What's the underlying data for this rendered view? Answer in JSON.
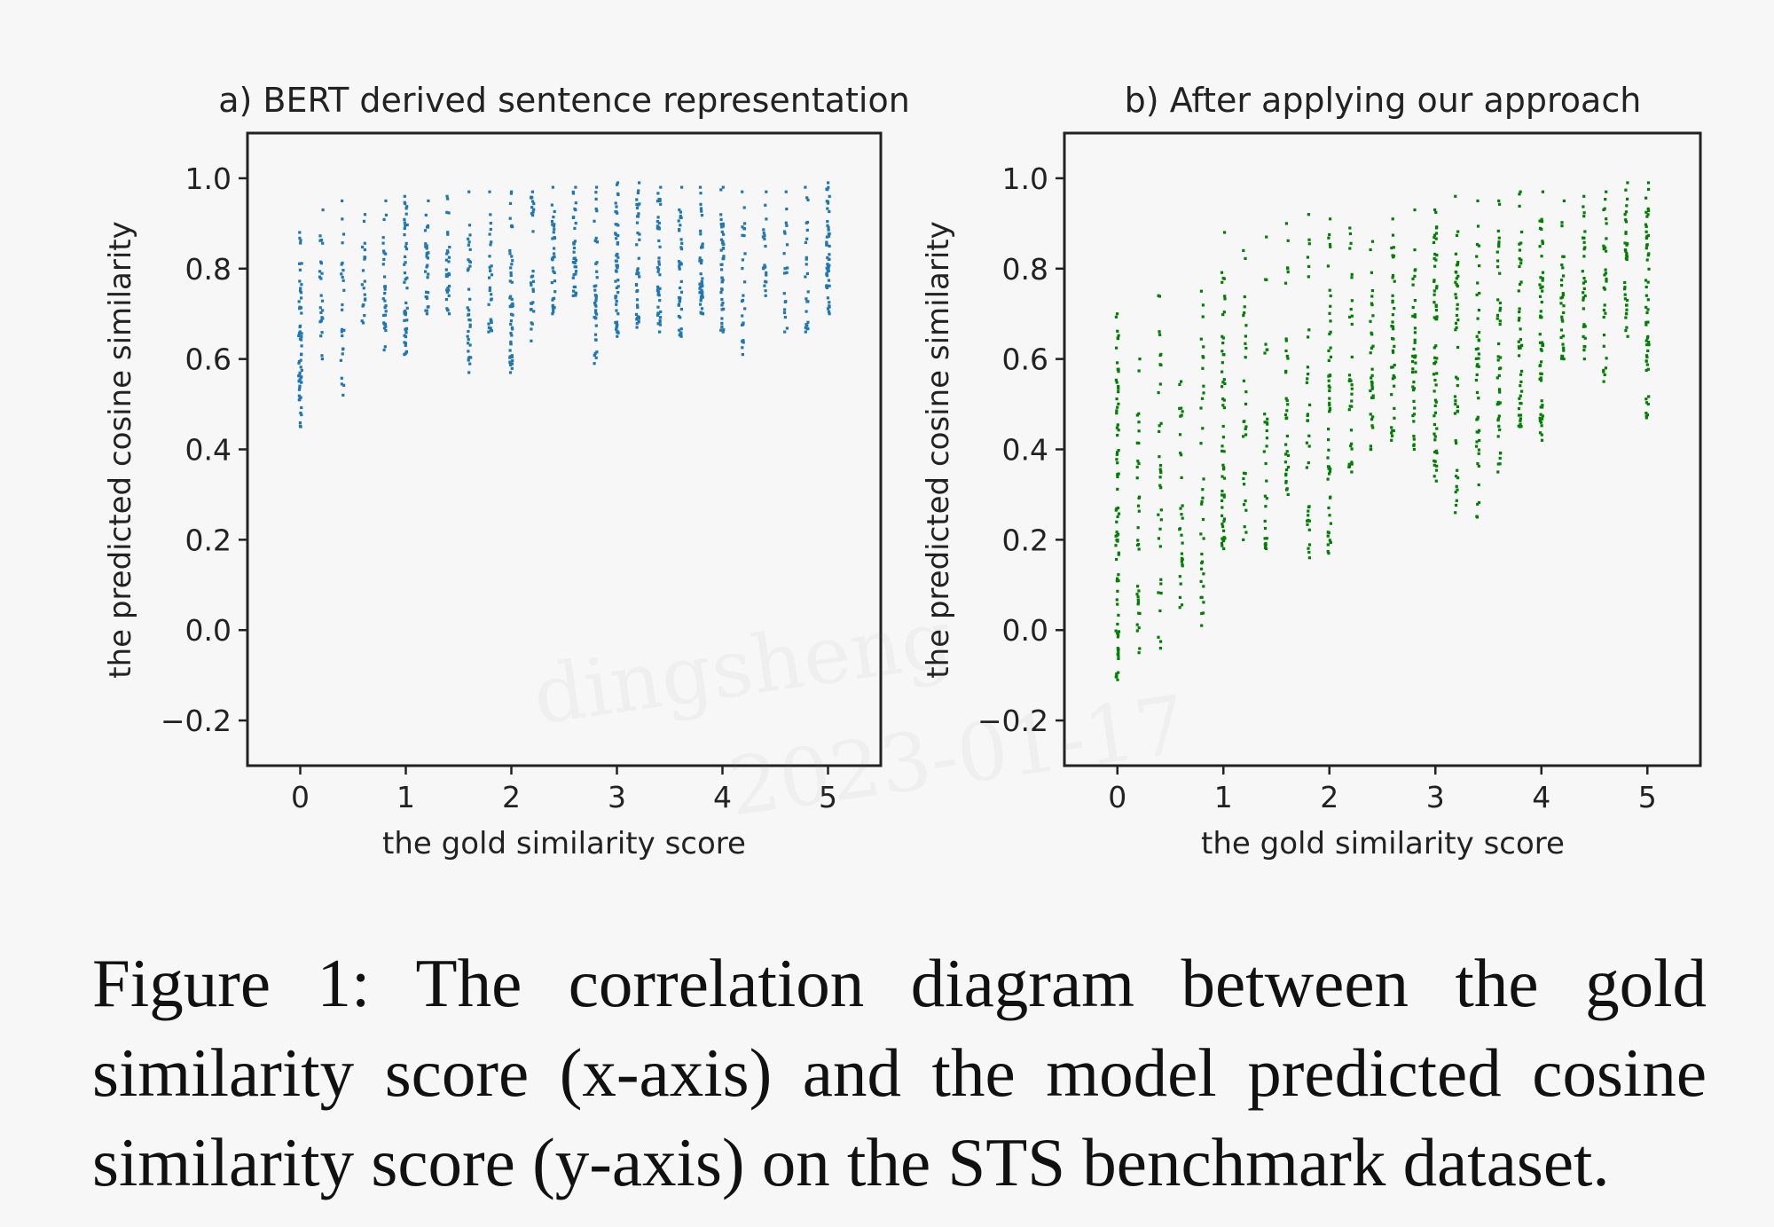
{
  "chart_data": [
    {
      "type": "scatter",
      "title": "a) BERT derived sentence representation",
      "xlabel": "the gold similarity score",
      "ylabel": "the predicted cosine similarity",
      "xlim": [
        -0.5,
        5.5
      ],
      "ylim": [
        -0.3,
        1.1
      ],
      "xticks": [
        0,
        1,
        2,
        3,
        4,
        5
      ],
      "yticks": [
        -0.2,
        0.0,
        0.2,
        0.4,
        0.6,
        0.8,
        1.0
      ],
      "ytick_labels": [
        "−0.2",
        "0.0",
        "0.2",
        "0.4",
        "0.6",
        "0.8",
        "1.0"
      ],
      "color": "#1f77b4",
      "grid": false,
      "columns": [
        {
          "x": 0.0,
          "y_min": 0.45,
          "y_max": 0.88,
          "n": 60
        },
        {
          "x": 0.2,
          "y_min": 0.6,
          "y_max": 0.93,
          "n": 25
        },
        {
          "x": 0.4,
          "y_min": 0.52,
          "y_max": 0.95,
          "n": 25
        },
        {
          "x": 0.6,
          "y_min": 0.68,
          "y_max": 0.92,
          "n": 20
        },
        {
          "x": 0.8,
          "y_min": 0.62,
          "y_max": 0.95,
          "n": 30
        },
        {
          "x": 1.0,
          "y_min": 0.61,
          "y_max": 0.96,
          "n": 45
        },
        {
          "x": 1.2,
          "y_min": 0.7,
          "y_max": 0.95,
          "n": 30
        },
        {
          "x": 1.4,
          "y_min": 0.7,
          "y_max": 0.96,
          "n": 30
        },
        {
          "x": 1.6,
          "y_min": 0.57,
          "y_max": 0.97,
          "n": 35
        },
        {
          "x": 1.8,
          "y_min": 0.66,
          "y_max": 0.97,
          "n": 30
        },
        {
          "x": 2.0,
          "y_min": 0.57,
          "y_max": 0.97,
          "n": 50
        },
        {
          "x": 2.2,
          "y_min": 0.64,
          "y_max": 0.97,
          "n": 30
        },
        {
          "x": 2.4,
          "y_min": 0.7,
          "y_max": 0.98,
          "n": 35
        },
        {
          "x": 2.6,
          "y_min": 0.74,
          "y_max": 0.98,
          "n": 35
        },
        {
          "x": 2.8,
          "y_min": 0.59,
          "y_max": 0.98,
          "n": 40
        },
        {
          "x": 3.0,
          "y_min": 0.65,
          "y_max": 0.99,
          "n": 55
        },
        {
          "x": 3.2,
          "y_min": 0.67,
          "y_max": 0.99,
          "n": 40
        },
        {
          "x": 3.4,
          "y_min": 0.66,
          "y_max": 0.98,
          "n": 45
        },
        {
          "x": 3.6,
          "y_min": 0.65,
          "y_max": 0.98,
          "n": 40
        },
        {
          "x": 3.8,
          "y_min": 0.7,
          "y_max": 0.98,
          "n": 45
        },
        {
          "x": 4.0,
          "y_min": 0.66,
          "y_max": 0.98,
          "n": 45
        },
        {
          "x": 4.2,
          "y_min": 0.61,
          "y_max": 0.97,
          "n": 25
        },
        {
          "x": 4.4,
          "y_min": 0.74,
          "y_max": 0.97,
          "n": 20
        },
        {
          "x": 4.6,
          "y_min": 0.66,
          "y_max": 0.97,
          "n": 20
        },
        {
          "x": 4.8,
          "y_min": 0.66,
          "y_max": 0.98,
          "n": 25
        },
        {
          "x": 5.0,
          "y_min": 0.7,
          "y_max": 0.99,
          "n": 50
        }
      ]
    },
    {
      "type": "scatter",
      "title": "b) After applying our approach",
      "xlabel": "the gold similarity score",
      "ylabel": "the predicted cosine similarity",
      "xlim": [
        -0.5,
        5.5
      ],
      "ylim": [
        -0.3,
        1.1
      ],
      "xticks": [
        0,
        1,
        2,
        3,
        4,
        5
      ],
      "yticks": [
        -0.2,
        0.0,
        0.2,
        0.4,
        0.6,
        0.8,
        1.0
      ],
      "ytick_labels": [
        "−0.2",
        "0.0",
        "0.2",
        "0.4",
        "0.6",
        "0.8",
        "1.0"
      ],
      "color": "#008000",
      "grid": false,
      "columns": [
        {
          "x": 0.0,
          "y_min": -0.11,
          "y_max": 0.7,
          "n": 80
        },
        {
          "x": 0.2,
          "y_min": -0.05,
          "y_max": 0.6,
          "n": 35
        },
        {
          "x": 0.4,
          "y_min": -0.04,
          "y_max": 0.74,
          "n": 35
        },
        {
          "x": 0.6,
          "y_min": 0.05,
          "y_max": 0.55,
          "n": 30
        },
        {
          "x": 0.8,
          "y_min": 0.01,
          "y_max": 0.75,
          "n": 35
        },
        {
          "x": 1.0,
          "y_min": 0.18,
          "y_max": 0.88,
          "n": 55
        },
        {
          "x": 1.2,
          "y_min": 0.2,
          "y_max": 0.84,
          "n": 30
        },
        {
          "x": 1.4,
          "y_min": 0.18,
          "y_max": 0.87,
          "n": 30
        },
        {
          "x": 1.6,
          "y_min": 0.3,
          "y_max": 0.9,
          "n": 35
        },
        {
          "x": 1.8,
          "y_min": 0.16,
          "y_max": 0.92,
          "n": 35
        },
        {
          "x": 2.0,
          "y_min": 0.17,
          "y_max": 0.91,
          "n": 55
        },
        {
          "x": 2.2,
          "y_min": 0.35,
          "y_max": 0.89,
          "n": 35
        },
        {
          "x": 2.4,
          "y_min": 0.4,
          "y_max": 0.86,
          "n": 35
        },
        {
          "x": 2.6,
          "y_min": 0.42,
          "y_max": 0.91,
          "n": 40
        },
        {
          "x": 2.8,
          "y_min": 0.4,
          "y_max": 0.93,
          "n": 40
        },
        {
          "x": 3.0,
          "y_min": 0.33,
          "y_max": 0.93,
          "n": 60
        },
        {
          "x": 3.2,
          "y_min": 0.26,
          "y_max": 0.96,
          "n": 45
        },
        {
          "x": 3.4,
          "y_min": 0.25,
          "y_max": 0.95,
          "n": 45
        },
        {
          "x": 3.6,
          "y_min": 0.35,
          "y_max": 0.95,
          "n": 45
        },
        {
          "x": 3.8,
          "y_min": 0.45,
          "y_max": 0.97,
          "n": 45
        },
        {
          "x": 4.0,
          "y_min": 0.42,
          "y_max": 0.97,
          "n": 55
        },
        {
          "x": 4.2,
          "y_min": 0.6,
          "y_max": 0.95,
          "n": 30
        },
        {
          "x": 4.4,
          "y_min": 0.6,
          "y_max": 0.96,
          "n": 30
        },
        {
          "x": 4.6,
          "y_min": 0.55,
          "y_max": 0.97,
          "n": 30
        },
        {
          "x": 4.8,
          "y_min": 0.65,
          "y_max": 0.99,
          "n": 35
        },
        {
          "x": 5.0,
          "y_min": 0.47,
          "y_max": 0.99,
          "n": 55
        }
      ]
    }
  ],
  "caption": "Figure 1: The correlation diagram between the gold similarity score (x-axis) and the model predicted cosine similarity score (y-axis) on the STS benchmark dataset.",
  "watermark": {
    "line1": "dingsheng",
    "line2": "2023-01-17"
  }
}
